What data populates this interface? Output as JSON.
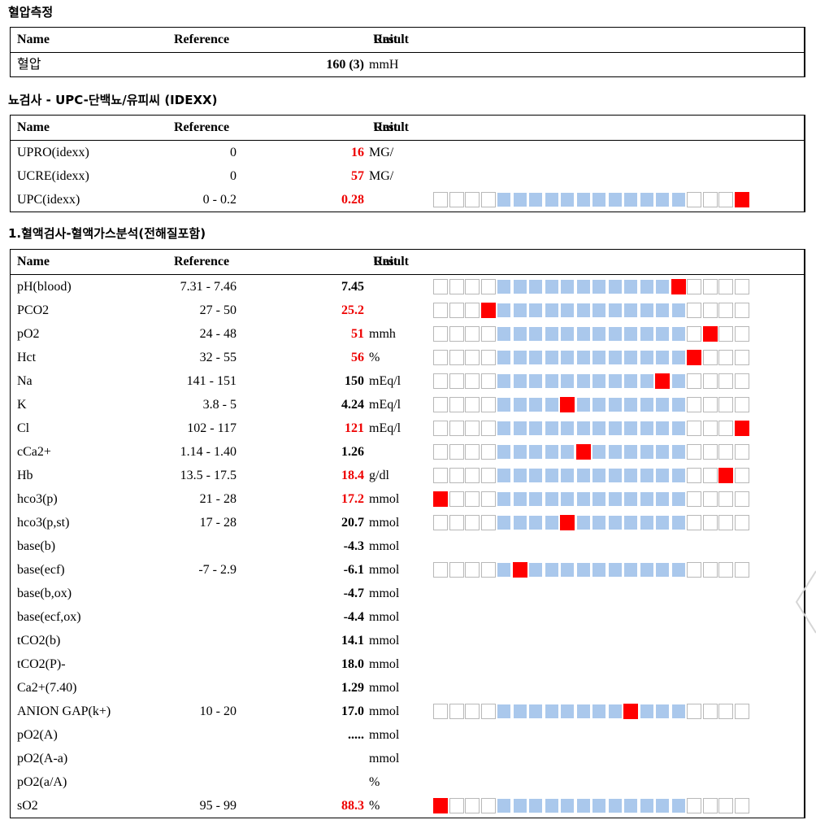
{
  "headers": {
    "name": "Name",
    "reference": "Reference",
    "result": "Result",
    "unit": "Unit"
  },
  "sections": [
    {
      "title": "혈압측정",
      "rows": [
        {
          "name": "혈압",
          "ref": "",
          "result": "160 (3)",
          "unit": "mmH",
          "flag": false,
          "marker": null
        }
      ]
    },
    {
      "title": "뇨검사 - UPC-단백뇨/유피씨 (IDEXX)",
      "rows": [
        {
          "name": "UPRO(idexx)",
          "ref": "0",
          "result": "16",
          "unit": "MG/",
          "flag": true,
          "marker": null
        },
        {
          "name": "UCRE(idexx)",
          "ref": "0",
          "result": "57",
          "unit": "MG/",
          "flag": true,
          "marker": null
        },
        {
          "name": "UPC(idexx)",
          "ref": "0 - 0.2",
          "result": "0.28",
          "unit": "",
          "flag": true,
          "marker": 19
        }
      ]
    },
    {
      "title": "1.혈액검사-혈액가스분석(전해질포함)",
      "rows": [
        {
          "name": "pH(blood)",
          "ref": "7.31 - 7.46",
          "result": "7.45",
          "unit": "",
          "flag": false,
          "marker": 15
        },
        {
          "name": "PCO2",
          "ref": "27 - 50",
          "result": "25.2",
          "unit": "",
          "flag": true,
          "marker": 3
        },
        {
          "name": "pO2",
          "ref": "24 - 48",
          "result": "51",
          "unit": "mmh",
          "flag": true,
          "marker": 17
        },
        {
          "name": "Hct",
          "ref": "32 - 55",
          "result": "56",
          "unit": "%",
          "flag": true,
          "marker": 16
        },
        {
          "name": "Na",
          "ref": "141 - 151",
          "result": "150",
          "unit": "mEq/l",
          "flag": false,
          "marker": 14
        },
        {
          "name": "K",
          "ref": "3.8 - 5",
          "result": "4.24",
          "unit": "mEq/l",
          "flag": false,
          "marker": 8
        },
        {
          "name": "Cl",
          "ref": "102 - 117",
          "result": "121",
          "unit": "mEq/l",
          "flag": true,
          "marker": 19
        },
        {
          "name": "cCa2+",
          "ref": "1.14 - 1.40",
          "result": "1.26",
          "unit": "",
          "flag": false,
          "marker": 9
        },
        {
          "name": "Hb",
          "ref": "13.5 - 17.5",
          "result": "18.4",
          "unit": "g/dl",
          "flag": true,
          "marker": 18
        },
        {
          "name": "hco3(p)",
          "ref": "21 - 28",
          "result": "17.2",
          "unit": "mmol",
          "flag": true,
          "marker": 0
        },
        {
          "name": "hco3(p,st)",
          "ref": "17 - 28",
          "result": "20.7",
          "unit": "mmol",
          "flag": false,
          "marker": 8
        },
        {
          "name": "base(b)",
          "ref": "",
          "result": "-4.3",
          "unit": "mmol",
          "flag": false,
          "marker": null
        },
        {
          "name": "base(ecf)",
          "ref": "-7 - 2.9",
          "result": "-6.1",
          "unit": "mmol",
          "flag": false,
          "marker": 5
        },
        {
          "name": "base(b,ox)",
          "ref": "",
          "result": "-4.7",
          "unit": "mmol",
          "flag": false,
          "marker": null
        },
        {
          "name": "base(ecf,ox)",
          "ref": "",
          "result": "-4.4",
          "unit": "mmol",
          "flag": false,
          "marker": null
        },
        {
          "name": "tCO2(b)",
          "ref": "",
          "result": "14.1",
          "unit": "mmol",
          "flag": false,
          "marker": null
        },
        {
          "name": "tCO2(P)-",
          "ref": "",
          "result": "18.0",
          "unit": "mmol",
          "flag": false,
          "marker": null
        },
        {
          "name": "Ca2+(7.40)",
          "ref": "",
          "result": "1.29",
          "unit": "mmol",
          "flag": false,
          "marker": null
        },
        {
          "name": "ANION GAP(k+)",
          "ref": "10 - 20",
          "result": "17.0",
          "unit": "mmol",
          "flag": false,
          "marker": 12
        },
        {
          "name": "pO2(A)",
          "ref": "",
          "result": ".....",
          "unit": "mmol",
          "flag": false,
          "marker": null
        },
        {
          "name": "pO2(A-a)",
          "ref": "",
          "result": "",
          "unit": "mmol",
          "flag": false,
          "marker": null
        },
        {
          "name": "pO2(a/A)",
          "ref": "",
          "result": "",
          "unit": "%",
          "flag": false,
          "marker": null
        },
        {
          "name": "sO2",
          "ref": "95 - 99",
          "result": "88.3",
          "unit": "%",
          "flag": true,
          "marker": 0
        }
      ]
    }
  ]
}
